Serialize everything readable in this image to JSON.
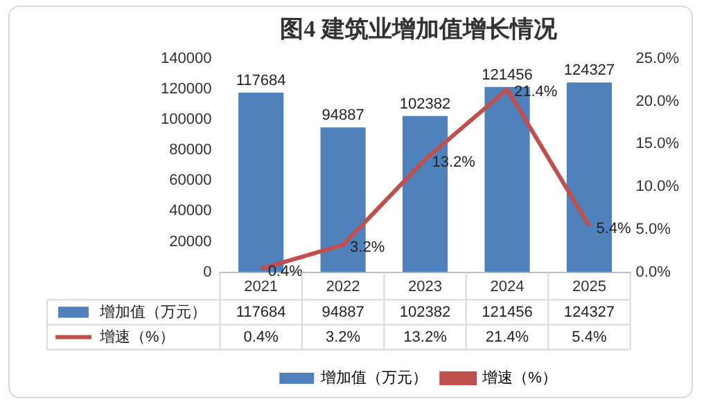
{
  "chart_data": {
    "type": "bar",
    "title": "图4 建筑业增加值增长情况",
    "categories": [
      "2021",
      "2022",
      "2023",
      "2024",
      "2025"
    ],
    "series": [
      {
        "name": "增加值（万元）",
        "color": "#4f81bd",
        "values": [
          117684,
          94887,
          102382,
          121456,
          124327
        ],
        "value_labels": [
          "117684",
          "94887",
          "102382",
          "121456",
          "124327"
        ]
      },
      {
        "name": "增速（%）",
        "type": "line",
        "axis": "y2",
        "color": "#c0504d",
        "values": [
          0.4,
          3.2,
          13.2,
          21.4,
          5.4
        ],
        "value_labels": [
          "0.4%",
          "3.2%",
          "13.2%",
          "21.4%",
          "5.4%"
        ]
      }
    ],
    "ylim": [
      0,
      140000
    ],
    "yticks": [
      0,
      20000,
      40000,
      60000,
      80000,
      100000,
      120000,
      140000
    ],
    "y2lim": [
      0,
      25
    ],
    "y2ticks": [
      {
        "value": 0,
        "label": "0.0%"
      },
      {
        "value": 5,
        "label": "5.0%"
      },
      {
        "value": 10,
        "label": "10.0%"
      },
      {
        "value": 15,
        "label": "15.0%"
      },
      {
        "value": 20,
        "label": "20.0%"
      },
      {
        "value": 25,
        "label": "25.0%"
      }
    ],
    "data_labels": true,
    "grid": false,
    "legend": "bottom",
    "marker": "none",
    "line_style": "solid"
  }
}
